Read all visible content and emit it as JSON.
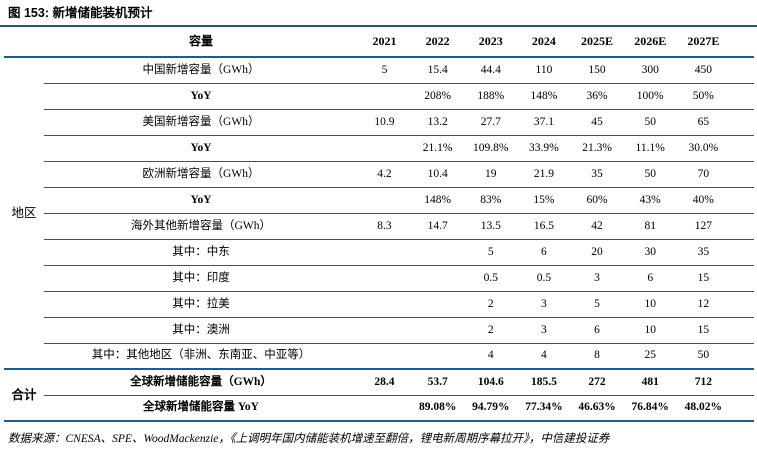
{
  "title": "图 153: 新增储能装机预计",
  "table": {
    "capacity_header": "容量",
    "years": [
      "2021",
      "2022",
      "2023",
      "2024",
      "2025E",
      "2026E",
      "2027E"
    ],
    "region_label": "地区",
    "total_label": "合计",
    "rows": [
      {
        "label": "中国新增容量（GWh）",
        "values": [
          "5",
          "15.4",
          "44.4",
          "110",
          "150",
          "300",
          "450"
        ]
      },
      {
        "label": "YoY",
        "values": [
          "",
          "208%",
          "188%",
          "148%",
          "36%",
          "100%",
          "50%"
        ]
      },
      {
        "label": "美国新增容量（GWh）",
        "values": [
          "10.9",
          "13.2",
          "27.7",
          "37.1",
          "45",
          "50",
          "65"
        ]
      },
      {
        "label": "YoY",
        "values": [
          "",
          "21.1%",
          "109.8%",
          "33.9%",
          "21.3%",
          "11.1%",
          "30.0%"
        ]
      },
      {
        "label": "欧洲新增容量（GWh）",
        "values": [
          "4.2",
          "10.4",
          "19",
          "21.9",
          "35",
          "50",
          "70"
        ]
      },
      {
        "label": "YoY",
        "values": [
          "",
          "148%",
          "83%",
          "15%",
          "60%",
          "43%",
          "40%"
        ]
      },
      {
        "label": "海外其他新增容量（GWh）",
        "values": [
          "8.3",
          "14.7",
          "13.5",
          "16.5",
          "42",
          "81",
          "127"
        ]
      },
      {
        "label": "其中：中东",
        "values": [
          "",
          "",
          "5",
          "6",
          "20",
          "30",
          "35"
        ]
      },
      {
        "label": "其中：印度",
        "values": [
          "",
          "",
          "0.5",
          "0.5",
          "3",
          "6",
          "15"
        ]
      },
      {
        "label": "其中：拉美",
        "values": [
          "",
          "",
          "2",
          "3",
          "5",
          "10",
          "12"
        ]
      },
      {
        "label": "其中：澳洲",
        "values": [
          "",
          "",
          "2",
          "3",
          "6",
          "10",
          "15"
        ]
      },
      {
        "label": "其中：其他地区（非洲、东南亚、中亚等）",
        "values": [
          "",
          "",
          "4",
          "4",
          "8",
          "25",
          "50"
        ]
      }
    ],
    "total_rows": [
      {
        "label": "全球新增储能容量（GWh）",
        "values": [
          "28.4",
          "53.7",
          "104.6",
          "185.5",
          "272",
          "481",
          "712"
        ]
      },
      {
        "label": "全球新增储能容量 YoY",
        "values": [
          "",
          "89.08%",
          "94.79%",
          "77.34%",
          "46.63%",
          "76.84%",
          "48.02%"
        ]
      }
    ]
  },
  "footer": "数据来源：CNESA、SPE、WoodMackenzie，《上调明年国内储能装机增速至翻倍，锂电新周期序幕拉开》，中信建投证券",
  "colors": {
    "line": "#1f5a96",
    "ink": "#000000"
  }
}
